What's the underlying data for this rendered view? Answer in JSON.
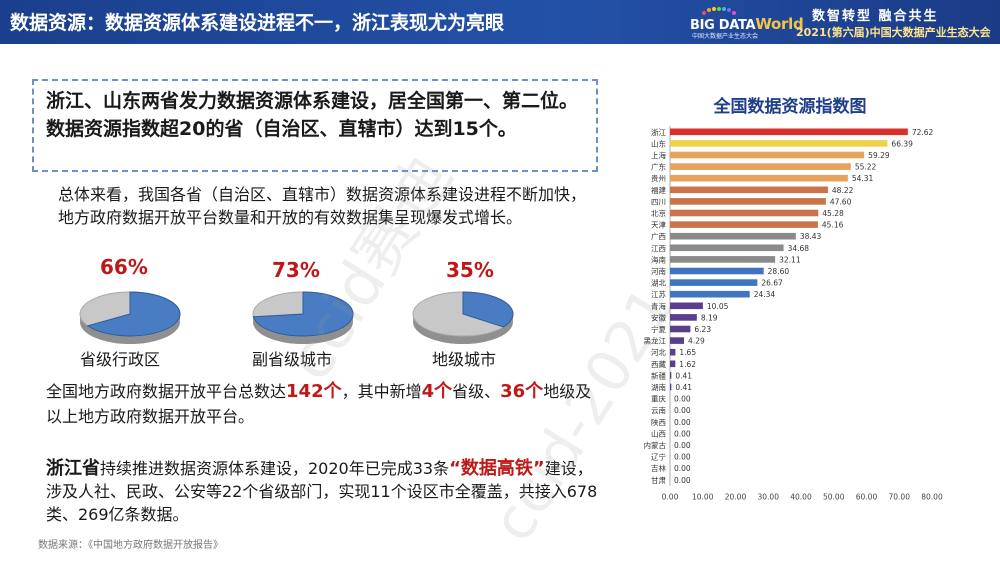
{
  "header": {
    "title": "数据资源：数据资源体系建设进程不一，浙江表现尤为亮眼",
    "logo_main": "BIG DATA",
    "logo_world": "World",
    "logo_sub": "中国大数据产业生态大会",
    "slogan": "数智转型  融合共生",
    "conference": "2021(第六届)中国大数据产业生态大会",
    "bg_color": "#1f4aa0"
  },
  "callout": {
    "text": "浙江、山东两省发力数据资源体系建设，居全国第一、第二位。数据资源指数超20的省（自治区、直辖市）达到15个。"
  },
  "paragraph1": "总体来看，我国各省（自治区、直辖市）数据资源体系建设进程不断加快，地方政府数据开放平台数量和开放的有效数据集呈现爆发式增长。",
  "pies": [
    {
      "percent": "66%",
      "label": "省级行政区",
      "value": 66,
      "fill": "#4a7cc4"
    },
    {
      "percent": "73%",
      "label": "副省级城市",
      "value": 73,
      "fill": "#4a7cc4"
    },
    {
      "percent": "35%",
      "label": "地级城市",
      "value": 35,
      "fill": "#4a7cc4"
    }
  ],
  "paragraph2": {
    "a": "全国地方政府数据开放平台总数达",
    "b": "142个",
    "c": "，其中新增",
    "d": "4个",
    "e": "省级、",
    "f": "36个",
    "g": "地级及以上地方政府数据开放平台。"
  },
  "paragraph3": {
    "a": "浙江省",
    "b": "持续推进数据资源体系建设，2020年已完成33条",
    "c": "“数据高铁”",
    "d": "建设，涉及人社、民政、公安等22个省级部门，实现11个设区市全覆盖，共接入678类、269亿条数据。"
  },
  "source": "数据来源：《中国地方政府数据开放报告》",
  "watermark": [
    "ccid赛迪",
    "ccid-2021"
  ],
  "chart_data": {
    "type": "bar",
    "orientation": "horizontal",
    "title": "全国数据资源指数图",
    "categories": [
      "浙江",
      "山东",
      "上海",
      "广东",
      "贵州",
      "福建",
      "四川",
      "北京",
      "天津",
      "广西",
      "江西",
      "海南",
      "河南",
      "湖北",
      "江苏",
      "青海",
      "安徽",
      "宁夏",
      "黑龙江",
      "河北",
      "西藏",
      "新疆",
      "湖南",
      "重庆",
      "云南",
      "陕西",
      "山西",
      "内蒙古",
      "辽宁",
      "吉林",
      "甘肃"
    ],
    "values": [
      72.62,
      66.39,
      59.29,
      55.22,
      54.31,
      48.22,
      47.6,
      45.28,
      45.16,
      38.43,
      34.68,
      32.11,
      28.6,
      26.67,
      24.34,
      10.05,
      8.19,
      6.23,
      4.29,
      1.65,
      1.62,
      0.41,
      0.41,
      0,
      0,
      0,
      0,
      0,
      0,
      0,
      0
    ],
    "value_labels": [
      "72.62",
      "66.39",
      "59.29",
      "55.22",
      "54.31",
      "48.22",
      "47.60",
      "45.28",
      "45.16",
      "38.43",
      "34.68",
      "32.11",
      "28.60",
      "26.67",
      "24.34",
      "10.05",
      "8.19",
      "6.23",
      "4.29",
      "1.65",
      "1.62",
      "0.41",
      "0.41",
      "0.00",
      "0.00",
      "0.00",
      "0.00",
      "0.00",
      "0.00",
      "0.00",
      "0.00"
    ],
    "colors": [
      "#d9302c",
      "#f0d24a",
      "#e8a35a",
      "#e8a35a",
      "#e8a35a",
      "#c9744a",
      "#c9744a",
      "#c9744a",
      "#c9744a",
      "#8a8a8a",
      "#8a8a8a",
      "#8a8a8a",
      "#3f74c2",
      "#3f74c2",
      "#3f74c2",
      "#5a3f8c",
      "#5a3f8c",
      "#5a3f8c",
      "#5a3f8c",
      "#5a3f8c",
      "#5a3f8c",
      "#5a3f8c",
      "#5a3f8c",
      "#5a3f8c",
      "#5a3f8c",
      "#5a3f8c",
      "#5a3f8c",
      "#5a3f8c",
      "#5a3f8c",
      "#5a3f8c",
      "#5a3f8c"
    ],
    "xticks": [
      "0.00",
      "10.00",
      "20.00",
      "30.00",
      "40.00",
      "50.00",
      "60.00",
      "70.00",
      "80.00"
    ],
    "xlim": [
      0,
      80
    ]
  }
}
